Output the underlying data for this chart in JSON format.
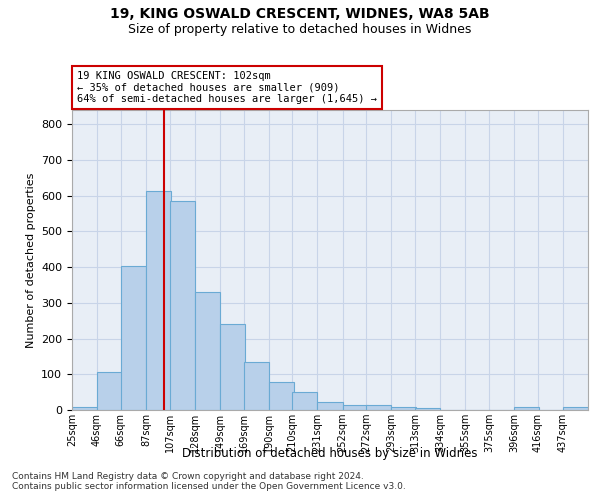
{
  "title1": "19, KING OSWALD CRESCENT, WIDNES, WA8 5AB",
  "title2": "Size of property relative to detached houses in Widnes",
  "xlabel": "Distribution of detached houses by size in Widnes",
  "ylabel": "Number of detached properties",
  "footer1": "Contains HM Land Registry data © Crown copyright and database right 2024.",
  "footer2": "Contains public sector information licensed under the Open Government Licence v3.0.",
  "annotation_line1": "19 KING OSWALD CRESCENT: 102sqm",
  "annotation_line2": "← 35% of detached houses are smaller (909)",
  "annotation_line3": "64% of semi-detached houses are larger (1,645) →",
  "bar_left_edges": [
    25,
    46,
    66,
    87,
    107,
    128,
    149,
    169,
    190,
    210,
    231,
    252,
    272,
    293,
    313,
    334,
    355,
    375,
    396,
    416,
    437
  ],
  "bar_heights": [
    8,
    107,
    402,
    612,
    585,
    330,
    240,
    135,
    78,
    50,
    22,
    15,
    15,
    8,
    5,
    0,
    0,
    0,
    8,
    0,
    8
  ],
  "bin_width": 21,
  "bar_color": "#b8d0ea",
  "bar_edge_color": "#6aaad4",
  "grid_color": "#c8d4e8",
  "bg_color": "#e8eef6",
  "red_line_x": 102,
  "annotation_box_color": "#ffffff",
  "annotation_box_edge": "#cc0000",
  "ylim": [
    0,
    840
  ],
  "yticks": [
    0,
    100,
    200,
    300,
    400,
    500,
    600,
    700,
    800
  ],
  "xtick_labels": [
    "25sqm",
    "46sqm",
    "66sqm",
    "87sqm",
    "107sqm",
    "128sqm",
    "149sqm",
    "169sqm",
    "190sqm",
    "210sqm",
    "231sqm",
    "252sqm",
    "272sqm",
    "293sqm",
    "313sqm",
    "334sqm",
    "355sqm",
    "375sqm",
    "396sqm",
    "416sqm",
    "437sqm"
  ]
}
